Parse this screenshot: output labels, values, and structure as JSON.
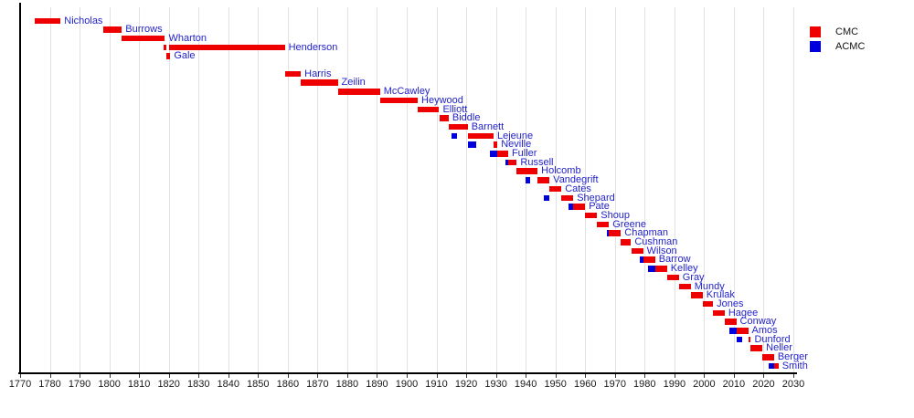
{
  "chart_data": {
    "type": "timeline",
    "title": "",
    "description": "Terms of Commandants (CMC) and Assistant Commandants (ACMC) of the Marine Corps plotted as horizontal bars against years",
    "x_axis": {
      "min": 1770,
      "max": 2030,
      "tick_interval": 10,
      "ticks": [
        1770,
        1780,
        1790,
        1800,
        1810,
        1820,
        1830,
        1840,
        1850,
        1860,
        1870,
        1880,
        1890,
        1900,
        1910,
        1920,
        1930,
        1940,
        1950,
        1960,
        1970,
        1980,
        1990,
        2000,
        2010,
        2020,
        2030
      ],
      "grid": true
    },
    "legend": [
      {
        "label": "CMC",
        "color": "#ee0000"
      },
      {
        "label": "ACMC",
        "color": "#0000dd"
      }
    ],
    "colors": {
      "CMC": "#ee0000",
      "ACMC": "#0000dd",
      "person_label": "#2222cc",
      "axis": "#000000",
      "gridline": "#e2e2e2",
      "tick_label": "#1a1a1a"
    },
    "people": [
      {
        "name": "Nicholas",
        "row": 0,
        "terms": [
          {
            "type": "CMC",
            "start": 1775,
            "end": 1783.6
          }
        ]
      },
      {
        "name": "Burrows",
        "row": 1,
        "terms": [
          {
            "type": "CMC",
            "start": 1798,
            "end": 1804.2
          }
        ]
      },
      {
        "name": "Wharton",
        "row": 2,
        "terms": [
          {
            "type": "CMC",
            "start": 1804.2,
            "end": 1818.7
          }
        ]
      },
      {
        "name": "Henderson",
        "row": 3,
        "terms": [
          {
            "type": "CMC",
            "start": 1818.2,
            "end": 1819.2
          },
          {
            "type": "CMC",
            "start": 1820,
            "end": 1859
          }
        ]
      },
      {
        "name": "Gale",
        "row": 4,
        "terms": [
          {
            "type": "CMC",
            "start": 1819.3,
            "end": 1820.5
          }
        ]
      },
      {
        "name": "Harris",
        "row": 6,
        "terms": [
          {
            "type": "CMC",
            "start": 1859,
            "end": 1864.4
          }
        ]
      },
      {
        "name": "Zeilin",
        "row": 7,
        "terms": [
          {
            "type": "CMC",
            "start": 1864.4,
            "end": 1876.8
          }
        ]
      },
      {
        "name": "McCawley",
        "row": 8,
        "terms": [
          {
            "type": "CMC",
            "start": 1876.8,
            "end": 1891
          }
        ]
      },
      {
        "name": "Heywood",
        "row": 9,
        "terms": [
          {
            "type": "CMC",
            "start": 1891,
            "end": 1903.7
          }
        ]
      },
      {
        "name": "Elliott",
        "row": 10,
        "terms": [
          {
            "type": "CMC",
            "start": 1903.7,
            "end": 1910.9
          }
        ]
      },
      {
        "name": "Biddle",
        "row": 11,
        "terms": [
          {
            "type": "CMC",
            "start": 1911.1,
            "end": 1914.1
          }
        ]
      },
      {
        "name": "Barnett",
        "row": 12,
        "terms": [
          {
            "type": "CMC",
            "start": 1914.1,
            "end": 1920.5
          }
        ]
      },
      {
        "name": "Lejeune",
        "row": 13,
        "terms": [
          {
            "type": "ACMC",
            "start": 1915,
            "end": 1917
          },
          {
            "type": "CMC",
            "start": 1920.5,
            "end": 1929.2
          }
        ]
      },
      {
        "name": "Neville",
        "row": 14,
        "terms": [
          {
            "type": "ACMC",
            "start": 1920.5,
            "end": 1923.5
          },
          {
            "type": "CMC",
            "start": 1929.2,
            "end": 1930.5
          }
        ]
      },
      {
        "name": "Fuller",
        "row": 15,
        "terms": [
          {
            "type": "ACMC",
            "start": 1928,
            "end": 1930.5
          },
          {
            "type": "CMC",
            "start": 1930.5,
            "end": 1934.1
          }
        ]
      },
      {
        "name": "Russell",
        "row": 16,
        "terms": [
          {
            "type": "ACMC",
            "start": 1933.2,
            "end": 1934.1
          },
          {
            "type": "CMC",
            "start": 1934.1,
            "end": 1937
          }
        ]
      },
      {
        "name": "Holcomb",
        "row": 17,
        "terms": [
          {
            "type": "CMC",
            "start": 1937,
            "end": 1944
          }
        ]
      },
      {
        "name": "Vandegrift",
        "row": 18,
        "terms": [
          {
            "type": "ACMC",
            "start": 1940,
            "end": 1941.5
          },
          {
            "type": "CMC",
            "start": 1944,
            "end": 1948
          }
        ]
      },
      {
        "name": "Cates",
        "row": 19,
        "terms": [
          {
            "type": "CMC",
            "start": 1948,
            "end": 1952
          }
        ]
      },
      {
        "name": "Shepard",
        "row": 20,
        "terms": [
          {
            "type": "ACMC",
            "start": 1946,
            "end": 1948
          },
          {
            "type": "CMC",
            "start": 1952,
            "end": 1956
          }
        ]
      },
      {
        "name": "Pate",
        "row": 21,
        "terms": [
          {
            "type": "ACMC",
            "start": 1954.5,
            "end": 1956
          },
          {
            "type": "CMC",
            "start": 1956,
            "end": 1960
          }
        ]
      },
      {
        "name": "Shoup",
        "row": 22,
        "terms": [
          {
            "type": "CMC",
            "start": 1960,
            "end": 1964
          }
        ]
      },
      {
        "name": "Greene",
        "row": 23,
        "terms": [
          {
            "type": "CMC",
            "start": 1964,
            "end": 1968
          }
        ]
      },
      {
        "name": "Chapman",
        "row": 24,
        "terms": [
          {
            "type": "ACMC",
            "start": 1967.3,
            "end": 1968
          },
          {
            "type": "CMC",
            "start": 1968,
            "end": 1972
          }
        ]
      },
      {
        "name": "Cushman",
        "row": 25,
        "terms": [
          {
            "type": "CMC",
            "start": 1972,
            "end": 1975.4
          }
        ]
      },
      {
        "name": "Wilson",
        "row": 26,
        "terms": [
          {
            "type": "CMC",
            "start": 1975.5,
            "end": 1979.5
          }
        ]
      },
      {
        "name": "Barrow",
        "row": 27,
        "terms": [
          {
            "type": "ACMC",
            "start": 1978.3,
            "end": 1979.5
          },
          {
            "type": "CMC",
            "start": 1979.5,
            "end": 1983.5
          }
        ]
      },
      {
        "name": "Kelley",
        "row": 28,
        "terms": [
          {
            "type": "ACMC",
            "start": 1981.2,
            "end": 1983.5
          },
          {
            "type": "CMC",
            "start": 1983.5,
            "end": 1987.5
          }
        ]
      },
      {
        "name": "Gray",
        "row": 29,
        "terms": [
          {
            "type": "CMC",
            "start": 1987.5,
            "end": 1991.5
          }
        ]
      },
      {
        "name": "Mundy",
        "row": 30,
        "terms": [
          {
            "type": "CMC",
            "start": 1991.5,
            "end": 1995.5
          }
        ]
      },
      {
        "name": "Krulak",
        "row": 31,
        "terms": [
          {
            "type": "CMC",
            "start": 1995.5,
            "end": 1999.5
          }
        ]
      },
      {
        "name": "Jones",
        "row": 32,
        "terms": [
          {
            "type": "CMC",
            "start": 1999.5,
            "end": 2003
          }
        ]
      },
      {
        "name": "Hagee",
        "row": 33,
        "terms": [
          {
            "type": "CMC",
            "start": 2003,
            "end": 2006.9
          }
        ]
      },
      {
        "name": "Conway",
        "row": 34,
        "terms": [
          {
            "type": "CMC",
            "start": 2006.9,
            "end": 2010.8
          }
        ]
      },
      {
        "name": "Amos",
        "row": 35,
        "terms": [
          {
            "type": "ACMC",
            "start": 2008.5,
            "end": 2010.8
          },
          {
            "type": "CMC",
            "start": 2010.8,
            "end": 2014.8
          }
        ]
      },
      {
        "name": "Dunford",
        "row": 36,
        "terms": [
          {
            "type": "ACMC",
            "start": 2010.8,
            "end": 2012.8
          },
          {
            "type": "CMC",
            "start": 2014.8,
            "end": 2015.7
          }
        ]
      },
      {
        "name": "Neller",
        "row": 37,
        "terms": [
          {
            "type": "CMC",
            "start": 2015.7,
            "end": 2019.6
          }
        ]
      },
      {
        "name": "Berger",
        "row": 38,
        "terms": [
          {
            "type": "CMC",
            "start": 2019.6,
            "end": 2023.5
          }
        ]
      },
      {
        "name": "Smith",
        "row": 39,
        "terms": [
          {
            "type": "ACMC",
            "start": 2021.8,
            "end": 2023.5
          },
          {
            "type": "CMC",
            "start": 2023.5,
            "end": 2025
          }
        ]
      }
    ]
  }
}
